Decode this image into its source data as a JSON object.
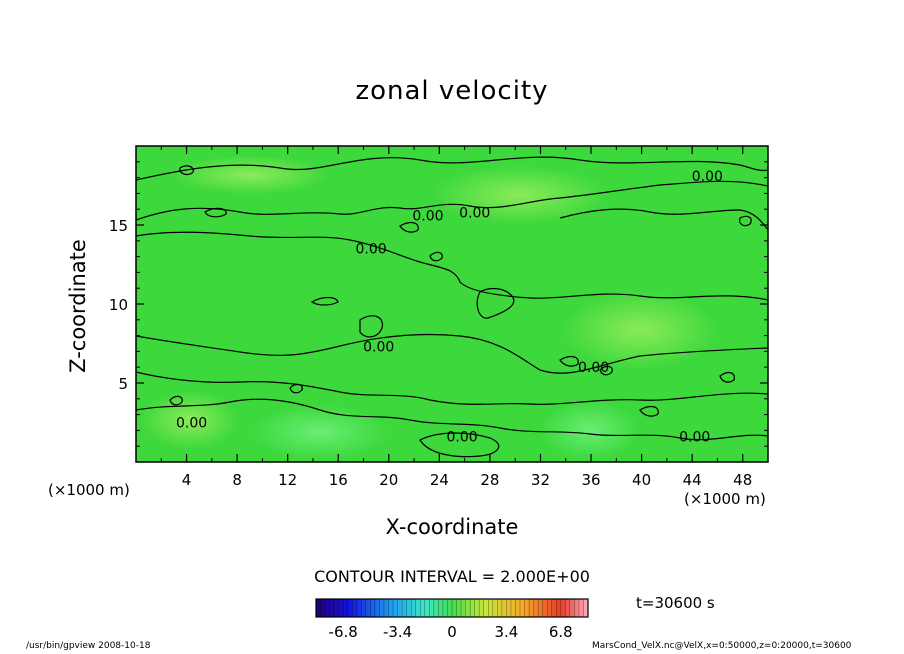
{
  "chart_data": {
    "type": "heatmap",
    "title": "zonal velocity",
    "xlabel": "X-coordinate",
    "ylabel": "Z-coordinate",
    "x_unit": "(×1000 m)",
    "y_unit": "(×1000 m)",
    "xlim": [
      0,
      50
    ],
    "ylim": [
      0,
      20
    ],
    "x_ticks": [
      4,
      8,
      12,
      16,
      20,
      24,
      28,
      32,
      36,
      40,
      44,
      48
    ],
    "y_ticks": [
      5,
      10,
      15
    ],
    "contour_interval_text": "CONTOUR INTERVAL = 2.000E+00",
    "contour_labels": [
      {
        "text": "0.00",
        "x": 45.2,
        "z": 18.1
      },
      {
        "text": "0.00",
        "x": 23.1,
        "z": 15.6
      },
      {
        "text": "0.00",
        "x": 26.8,
        "z": 15.8
      },
      {
        "text": "0.00",
        "x": 18.6,
        "z": 13.5
      },
      {
        "text": "0.00",
        "x": 19.2,
        "z": 7.3
      },
      {
        "text": "0.00",
        "x": 36.2,
        "z": 6.0
      },
      {
        "text": "0.00",
        "x": 4.4,
        "z": 2.5
      },
      {
        "text": "0.00",
        "x": 25.8,
        "z": 1.6
      },
      {
        "text": "0.00",
        "x": 44.2,
        "z": 1.6
      }
    ],
    "time_text": "t=30600 s",
    "colorbar": {
      "min": -8.5,
      "max": 8.5,
      "ticks": [
        "-6.8",
        "-3.4",
        "0",
        "3.4",
        "6.8"
      ],
      "tick_values": [
        -6.8,
        -3.4,
        0,
        3.4,
        6.8
      ],
      "colormap": "rainbow"
    },
    "field_color": "#3cd83c",
    "field_description_values": "near zero everywhere; slightly positive near bottom around x=12-20 and x=30-36"
  },
  "footer": {
    "left": "/usr/bin/gpview   2008-10-18",
    "right": "MarsCond_VelX.nc@VelX,x=0:50000,z=0:20000,t=30600"
  }
}
